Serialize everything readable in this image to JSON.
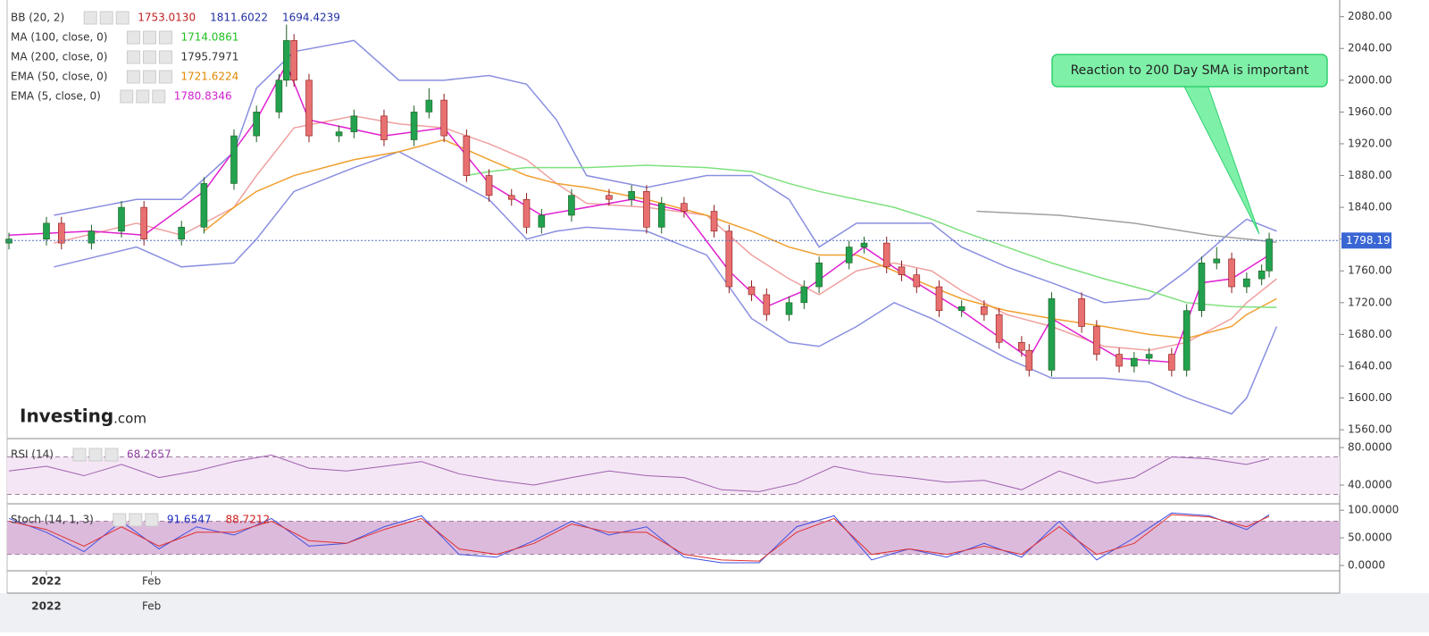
{
  "chart_data": [
    {
      "type": "candlestick",
      "color_up": "#22a14e",
      "color_down": "#e87070",
      "outline_up": "#1b5e20",
      "outline_down": "#8b1a1a",
      "x": [
        0,
        5,
        7,
        11,
        15,
        18,
        23,
        26,
        30,
        33,
        36,
        37,
        38,
        40,
        44,
        46,
        50,
        54,
        56,
        58,
        61,
        64,
        67,
        69,
        71,
        75,
        80,
        83,
        85,
        87,
        90,
        94,
        96,
        99,
        101,
        104,
        106,
        108,
        112,
        114,
        117,
        119,
        121,
        124,
        127,
        130,
        132,
        135,
        136,
        139,
        143,
        145,
        148,
        150,
        152,
        155,
        157,
        159,
        161,
        163,
        165,
        167,
        168
      ],
      "open": [
        1795,
        1800,
        1820,
        1795,
        1810,
        1840,
        1800,
        1815,
        1870,
        1930,
        1960,
        2000,
        2050,
        2000,
        1930,
        1935,
        1955,
        1925,
        1960,
        1975,
        1930,
        1880,
        1855,
        1850,
        1815,
        1830,
        1855,
        1850,
        1860,
        1815,
        1845,
        1835,
        1810,
        1740,
        1730,
        1705,
        1720,
        1740,
        1770,
        1790,
        1795,
        1765,
        1755,
        1740,
        1710,
        1715,
        1705,
        1670,
        1660,
        1635,
        1725,
        1690,
        1655,
        1640,
        1650,
        1655,
        1635,
        1710,
        1770,
        1775,
        1740,
        1750,
        1760
      ],
      "high": [
        1808,
        1828,
        1828,
        1818,
        1848,
        1848,
        1823,
        1878,
        1938,
        1968,
        2008,
        2070,
        2058,
        2008,
        1943,
        1963,
        1963,
        1968,
        1990,
        1983,
        1938,
        1888,
        1863,
        1858,
        1838,
        1863,
        1863,
        1868,
        1868,
        1853,
        1853,
        1843,
        1818,
        1748,
        1738,
        1728,
        1748,
        1778,
        1798,
        1803,
        1803,
        1773,
        1763,
        1748,
        1723,
        1723,
        1713,
        1678,
        1668,
        1733,
        1733,
        1698,
        1663,
        1658,
        1663,
        1663,
        1718,
        1778,
        1790,
        1783,
        1758,
        1768,
        1808
      ],
      "low": [
        1787,
        1792,
        1787,
        1787,
        1802,
        1792,
        1792,
        1807,
        1862,
        1922,
        1952,
        1992,
        1992,
        1922,
        1922,
        1927,
        1917,
        1917,
        1952,
        1922,
        1872,
        1847,
        1842,
        1807,
        1807,
        1822,
        1842,
        1842,
        1807,
        1807,
        1827,
        1802,
        1732,
        1722,
        1697,
        1697,
        1712,
        1732,
        1762,
        1782,
        1757,
        1747,
        1732,
        1702,
        1702,
        1697,
        1662,
        1652,
        1627,
        1627,
        1682,
        1647,
        1632,
        1632,
        1642,
        1627,
        1627,
        1702,
        1762,
        1732,
        1732,
        1742,
        1752
      ],
      "close": [
        1800,
        1820,
        1795,
        1810,
        1840,
        1800,
        1815,
        1870,
        1930,
        1960,
        2000,
        2050,
        2000,
        1930,
        1935,
        1955,
        1925,
        1960,
        1975,
        1930,
        1880,
        1855,
        1850,
        1815,
        1830,
        1855,
        1850,
        1860,
        1815,
        1845,
        1835,
        1810,
        1740,
        1730,
        1705,
        1720,
        1740,
        1770,
        1790,
        1795,
        1765,
        1755,
        1740,
        1710,
        1715,
        1705,
        1670,
        1660,
        1635,
        1725,
        1690,
        1655,
        1640,
        1650,
        1655,
        1635,
        1710,
        1770,
        1775,
        1740,
        1750,
        1760,
        1800
      ],
      "lines": [
        {
          "color": "#8a8fe0",
          "x": [
            6,
            17,
            23,
            30,
            33,
            38,
            46,
            52,
            58,
            64,
            69,
            73,
            77,
            85,
            93,
            99,
            104,
            108,
            113,
            118,
            123,
            127,
            133,
            139,
            146,
            152,
            157,
            163,
            165,
            169
          ],
          "values": [
            1830,
            1850,
            1850,
            1910,
            1990,
            2036,
            2050,
            2000,
            2000,
            2006,
            1995,
            1950,
            1880,
            1865,
            1880,
            1880,
            1850,
            1790,
            1820,
            1820,
            1820,
            1790,
            1765,
            1745,
            1720,
            1725,
            1760,
            1810,
            1825,
            1810
          ]
        },
        {
          "color": "#8a8fe0",
          "x": [
            6,
            17,
            23,
            30,
            33,
            38,
            46,
            52,
            58,
            64,
            69,
            73,
            77,
            85,
            93,
            99,
            104,
            108,
            113,
            118,
            123,
            127,
            133,
            139,
            146,
            152,
            157,
            163,
            165,
            169
          ],
          "values": [
            1765,
            1790,
            1765,
            1770,
            1800,
            1860,
            1890,
            1910,
            1880,
            1850,
            1800,
            1810,
            1815,
            1810,
            1780,
            1700,
            1670,
            1665,
            1690,
            1720,
            1700,
            1680,
            1650,
            1625,
            1625,
            1620,
            1600,
            1580,
            1600,
            1690
          ]
        },
        {
          "color": "#f0a0a0",
          "x": [
            6,
            17,
            23,
            30,
            33,
            38,
            46,
            52,
            58,
            64,
            69,
            73,
            77,
            85,
            93,
            99,
            104,
            108,
            113,
            118,
            123,
            127,
            133,
            139,
            146,
            152,
            157,
            163,
            165,
            169
          ],
          "values": [
            1795,
            1820,
            1805,
            1840,
            1880,
            1940,
            1955,
            1945,
            1940,
            1920,
            1900,
            1870,
            1845,
            1840,
            1830,
            1780,
            1750,
            1730,
            1760,
            1770,
            1760,
            1735,
            1705,
            1690,
            1665,
            1660,
            1670,
            1700,
            1720,
            1750
          ]
        },
        {
          "color": "#f0a030",
          "x": [
            26,
            30,
            33,
            38,
            46,
            52,
            58,
            64,
            69,
            73,
            77,
            85,
            93,
            99,
            104,
            108,
            113,
            118,
            123,
            127,
            133,
            139,
            146,
            152,
            157,
            163,
            165,
            169
          ],
          "values": [
            1810,
            1840,
            1860,
            1880,
            1900,
            1910,
            1925,
            1900,
            1880,
            1870,
            1865,
            1850,
            1830,
            1810,
            1790,
            1780,
            1780,
            1760,
            1740,
            1725,
            1710,
            1700,
            1690,
            1680,
            1675,
            1690,
            1705,
            1725
          ]
        },
        {
          "color": "#7de07d",
          "x": [
            61,
            64,
            69,
            77,
            85,
            93,
            99,
            104,
            108,
            113,
            118,
            123,
            127,
            133,
            139,
            146,
            152,
            157,
            163,
            169
          ],
          "values": [
            1880,
            1885,
            1890,
            1890,
            1893,
            1890,
            1885,
            1870,
            1860,
            1850,
            1840,
            1825,
            1810,
            1790,
            1770,
            1750,
            1735,
            1720,
            1715,
            1714
          ]
        },
        {
          "color": "#a0a0a0",
          "x": [
            129,
            140,
            150,
            160,
            169
          ],
          "values": [
            1835,
            1830,
            1820,
            1805,
            1796
          ]
        },
        {
          "color": "#e020d0",
          "x": [
            0,
            11,
            18,
            26,
            33,
            37,
            40,
            50,
            58,
            64,
            71,
            83,
            90,
            96,
            101,
            106,
            114,
            121,
            127,
            136,
            139,
            148,
            155,
            159,
            163,
            168
          ],
          "values": [
            1805,
            1810,
            1805,
            1860,
            1950,
            2020,
            1950,
            1930,
            1940,
            1870,
            1830,
            1850,
            1835,
            1760,
            1715,
            1735,
            1790,
            1745,
            1710,
            1650,
            1700,
            1650,
            1645,
            1745,
            1750,
            1780
          ]
        }
      ],
      "xlim": [
        -0.24,
        177.4
      ],
      "xticks": [
        {
          "value": 5,
          "label": "2022"
        },
        {
          "value": 19,
          "label": "Feb"
        }
      ],
      "ylim": [
        1550,
        2101
      ],
      "yticks": [
        {
          "value": 1560,
          "label": "1560.00"
        },
        {
          "value": 1600,
          "label": "1600.00"
        },
        {
          "value": 1640,
          "label": "1640.00"
        },
        {
          "value": 1680,
          "label": "1680.00"
        },
        {
          "value": 1720,
          "label": "1720.00"
        },
        {
          "value": 1760,
          "label": "1760.00"
        },
        {
          "value": 1800,
          "label": "1800.00"
        },
        {
          "value": 1840,
          "label": "1840.00"
        },
        {
          "value": 1880,
          "label": "1880.00"
        },
        {
          "value": 1920,
          "label": "1920.00"
        },
        {
          "value": 1960,
          "label": "1960.00"
        },
        {
          "value": 2000,
          "label": "2000.00"
        },
        {
          "value": 2040,
          "label": "2040.00"
        },
        {
          "value": 2080,
          "label": "2080.00"
        }
      ],
      "last_price": {
        "value": 1798.19,
        "label": "1798.19"
      },
      "legend": [
        {
          "label": "BB (20, 2)",
          "values": [
            "1753.0130",
            "1811.6022",
            "1694.4239"
          ],
          "colors": [
            "#c02020",
            "#2030a0",
            "#2030a0"
          ]
        },
        {
          "label": "MA (100, close, 0)",
          "values": [
            "1714.0861"
          ],
          "colors": [
            "#20c020"
          ]
        },
        {
          "label": "MA (200, close, 0)",
          "values": [
            "1795.7971"
          ],
          "colors": [
            "#333333"
          ]
        },
        {
          "label": "EMA (50, close, 0)",
          "values": [
            "1721.6224"
          ],
          "colors": [
            "#e08a00"
          ]
        },
        {
          "label": "EMA (5, close, 0)",
          "values": [
            "1780.8346"
          ],
          "colors": [
            "#d020d0"
          ]
        }
      ],
      "annotation": "Reaction to 200 Day SMA is important",
      "brand": [
        "Investing",
        ".com"
      ]
    },
    {
      "type": "line",
      "ylim": [
        21,
        88.6
      ],
      "yticks": [
        {
          "value": 40,
          "label": "40.0000"
        },
        {
          "value": 80,
          "label": "80.0000"
        }
      ],
      "bands": [
        30,
        70
      ],
      "band_color": "#f4e6f4",
      "legend": [
        {
          "label": "RSI (14)",
          "values": [
            "68.2657"
          ],
          "colors": [
            "#9040a0"
          ]
        }
      ],
      "series": [
        {
          "color": "#a060b0",
          "x": [
            0,
            5,
            10,
            15,
            20,
            25,
            30,
            35,
            40,
            45,
            50,
            55,
            60,
            65,
            70,
            75,
            80,
            85,
            90,
            95,
            100,
            105,
            110,
            115,
            120,
            125,
            130,
            135,
            140,
            145,
            150,
            155,
            160,
            165,
            168
          ],
          "values": [
            55,
            60,
            50,
            62,
            48,
            55,
            65,
            72,
            58,
            55,
            60,
            65,
            52,
            45,
            40,
            48,
            55,
            50,
            48,
            35,
            33,
            42,
            60,
            52,
            48,
            43,
            45,
            35,
            55,
            42,
            48,
            70,
            68,
            62,
            68
          ]
        }
      ]
    },
    {
      "type": "line",
      "ylim": [
        -8,
        110
      ],
      "yticks": [
        {
          "value": 0,
          "label": "0.0000"
        },
        {
          "value": 50,
          "label": "50.0000"
        },
        {
          "value": 100,
          "label": "100.0000"
        }
      ],
      "bands": [
        20,
        80
      ],
      "band_color": "#dcbadc",
      "legend": [
        {
          "label": "Stoch (14, 1, 3)",
          "values": [
            "91.6547",
            "88.7212"
          ],
          "colors": [
            "#2030c0",
            "#d02020"
          ]
        }
      ],
      "series": [
        {
          "color": "#4050e0",
          "x": [
            0,
            5,
            10,
            15,
            20,
            25,
            30,
            35,
            40,
            45,
            50,
            55,
            60,
            65,
            70,
            75,
            80,
            85,
            90,
            95,
            100,
            105,
            110,
            115,
            120,
            125,
            130,
            135,
            140,
            145,
            150,
            155,
            160,
            165,
            168
          ],
          "values": [
            85,
            60,
            25,
            80,
            30,
            70,
            55,
            85,
            35,
            40,
            70,
            90,
            20,
            15,
            45,
            80,
            55,
            70,
            15,
            5,
            5,
            70,
            90,
            10,
            30,
            15,
            40,
            15,
            80,
            10,
            50,
            95,
            90,
            65,
            92
          ]
        },
        {
          "color": "#e03030",
          "x": [
            0,
            5,
            10,
            15,
            20,
            25,
            30,
            35,
            40,
            45,
            50,
            55,
            60,
            65,
            70,
            75,
            80,
            85,
            90,
            95,
            100,
            105,
            110,
            115,
            120,
            125,
            130,
            135,
            140,
            145,
            150,
            155,
            160,
            165,
            168
          ],
          "values": [
            80,
            65,
            35,
            70,
            35,
            60,
            60,
            80,
            45,
            40,
            65,
            85,
            30,
            20,
            40,
            75,
            60,
            60,
            20,
            10,
            8,
            60,
            85,
            20,
            30,
            20,
            35,
            20,
            70,
            20,
            40,
            92,
            88,
            70,
            89
          ]
        }
      ]
    }
  ]
}
